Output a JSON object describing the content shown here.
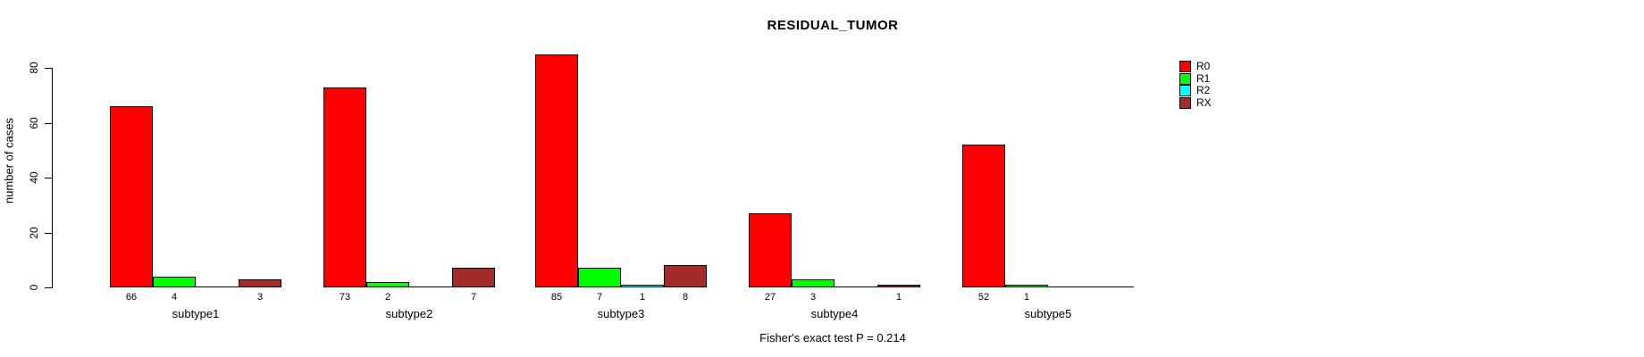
{
  "chart_data": {
    "type": "bar",
    "title": "RESIDUAL_TUMOR",
    "ylabel": "number of cases",
    "xlabel": "",
    "categories": [
      "subtype1",
      "subtype2",
      "subtype3",
      "subtype4",
      "subtype5"
    ],
    "series": [
      {
        "name": "R0",
        "color": "#FF0000",
        "values": [
          66,
          73,
          85,
          27,
          52
        ]
      },
      {
        "name": "R1",
        "color": "#00FF00",
        "values": [
          4,
          2,
          7,
          3,
          1
        ]
      },
      {
        "name": "R2",
        "color": "#00FFFF",
        "values": [
          0,
          0,
          1,
          0,
          0
        ]
      },
      {
        "name": "RX",
        "color": "#A52A2A",
        "values": [
          3,
          7,
          8,
          1,
          0
        ]
      }
    ],
    "value_labels": [
      [
        "66",
        "4",
        "",
        "3"
      ],
      [
        "73",
        "2",
        "",
        "7"
      ],
      [
        "85",
        "7",
        "1",
        "8"
      ],
      [
        "27",
        "3",
        "",
        "1"
      ],
      [
        "52",
        "1",
        "",
        ""
      ]
    ],
    "yticks": [
      0,
      20,
      40,
      60,
      80
    ],
    "ylim": [
      0,
      85
    ],
    "grid": false,
    "legend_position": "right",
    "annotation": "Fisher's exact test P = 0.214",
    "colors": {
      "axis": "#000000",
      "text": "#000000",
      "background": "#FFFFFF"
    }
  }
}
